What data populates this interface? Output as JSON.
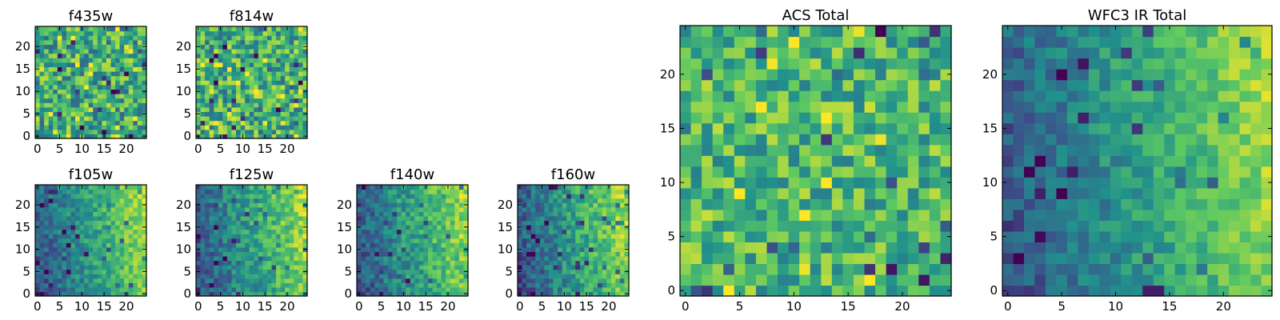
{
  "figure": {
    "colormap": "viridis",
    "colormap_stops": [
      "#440154",
      "#3b528b",
      "#21918c",
      "#5ec962",
      "#fde725"
    ],
    "grid": false,
    "grid_size": 25
  },
  "chart_data": [
    {
      "type": "heatmap",
      "id": "f435w",
      "title": "f435w",
      "xlim": [
        0,
        24
      ],
      "ylim": [
        0,
        24
      ],
      "xticks": [
        "0",
        "5",
        "10",
        "15",
        "20"
      ],
      "yticks": [
        "0",
        "5",
        "10",
        "15",
        "20"
      ],
      "pattern": "noise",
      "seed": 11,
      "vmean": 0.62,
      "spread": 0.26
    },
    {
      "type": "heatmap",
      "id": "f814w",
      "title": "f814w",
      "xlim": [
        0,
        24
      ],
      "ylim": [
        0,
        24
      ],
      "xticks": [
        "0",
        "5",
        "10",
        "15",
        "20"
      ],
      "yticks": [
        "0",
        "5",
        "10",
        "15",
        "20"
      ],
      "pattern": "noise",
      "seed": 23,
      "vmean": 0.64,
      "spread": 0.26
    },
    {
      "type": "heatmap",
      "id": "f105w",
      "title": "f105w",
      "xlim": [
        0,
        24
      ],
      "ylim": [
        0,
        24
      ],
      "xticks": [
        "0",
        "5",
        "10",
        "15",
        "20"
      ],
      "yticks": [
        "0",
        "5",
        "10",
        "15",
        "20"
      ],
      "pattern": "gradient",
      "seed": 37,
      "vmean": 0.5,
      "spread": 0.18
    },
    {
      "type": "heatmap",
      "id": "f125w",
      "title": "f125w",
      "xlim": [
        0,
        24
      ],
      "ylim": [
        0,
        24
      ],
      "xticks": [
        "0",
        "5",
        "10",
        "15",
        "20"
      ],
      "yticks": [
        "0",
        "5",
        "10",
        "15",
        "20"
      ],
      "pattern": "gradient",
      "seed": 41,
      "vmean": 0.58,
      "spread": 0.2
    },
    {
      "type": "heatmap",
      "id": "f140w",
      "title": "f140w",
      "xlim": [
        0,
        24
      ],
      "ylim": [
        0,
        24
      ],
      "xticks": [
        "0",
        "5",
        "10",
        "15",
        "20"
      ],
      "yticks": [
        "0",
        "5",
        "10",
        "15",
        "20"
      ],
      "pattern": "gradient",
      "seed": 53,
      "vmean": 0.55,
      "spread": 0.2
    },
    {
      "type": "heatmap",
      "id": "f160w",
      "title": "f160w",
      "xlim": [
        0,
        24
      ],
      "ylim": [
        0,
        24
      ],
      "xticks": [
        "0",
        "5",
        "10",
        "15",
        "20"
      ],
      "yticks": [
        "0",
        "5",
        "10",
        "15",
        "20"
      ],
      "pattern": "gradient",
      "seed": 67,
      "vmean": 0.52,
      "spread": 0.2
    },
    {
      "type": "heatmap",
      "id": "acs-total",
      "title": "ACS Total",
      "xlim": [
        0,
        24
      ],
      "ylim": [
        0,
        24
      ],
      "xticks": [
        "0",
        "5",
        "10",
        "15",
        "20"
      ],
      "yticks": [
        "0",
        "5",
        "10",
        "15",
        "20"
      ],
      "pattern": "noise",
      "seed": 79,
      "vmean": 0.66,
      "spread": 0.22
    },
    {
      "type": "heatmap",
      "id": "wfc3-ir-total",
      "title": "WFC3 IR Total",
      "xlim": [
        0,
        24
      ],
      "ylim": [
        0,
        24
      ],
      "xticks": [
        "0",
        "5",
        "10",
        "15",
        "20"
      ],
      "yticks": [
        "0",
        "5",
        "10",
        "15",
        "20"
      ],
      "pattern": "gradient",
      "seed": 97,
      "vmean": 0.5,
      "spread": 0.16
    }
  ]
}
